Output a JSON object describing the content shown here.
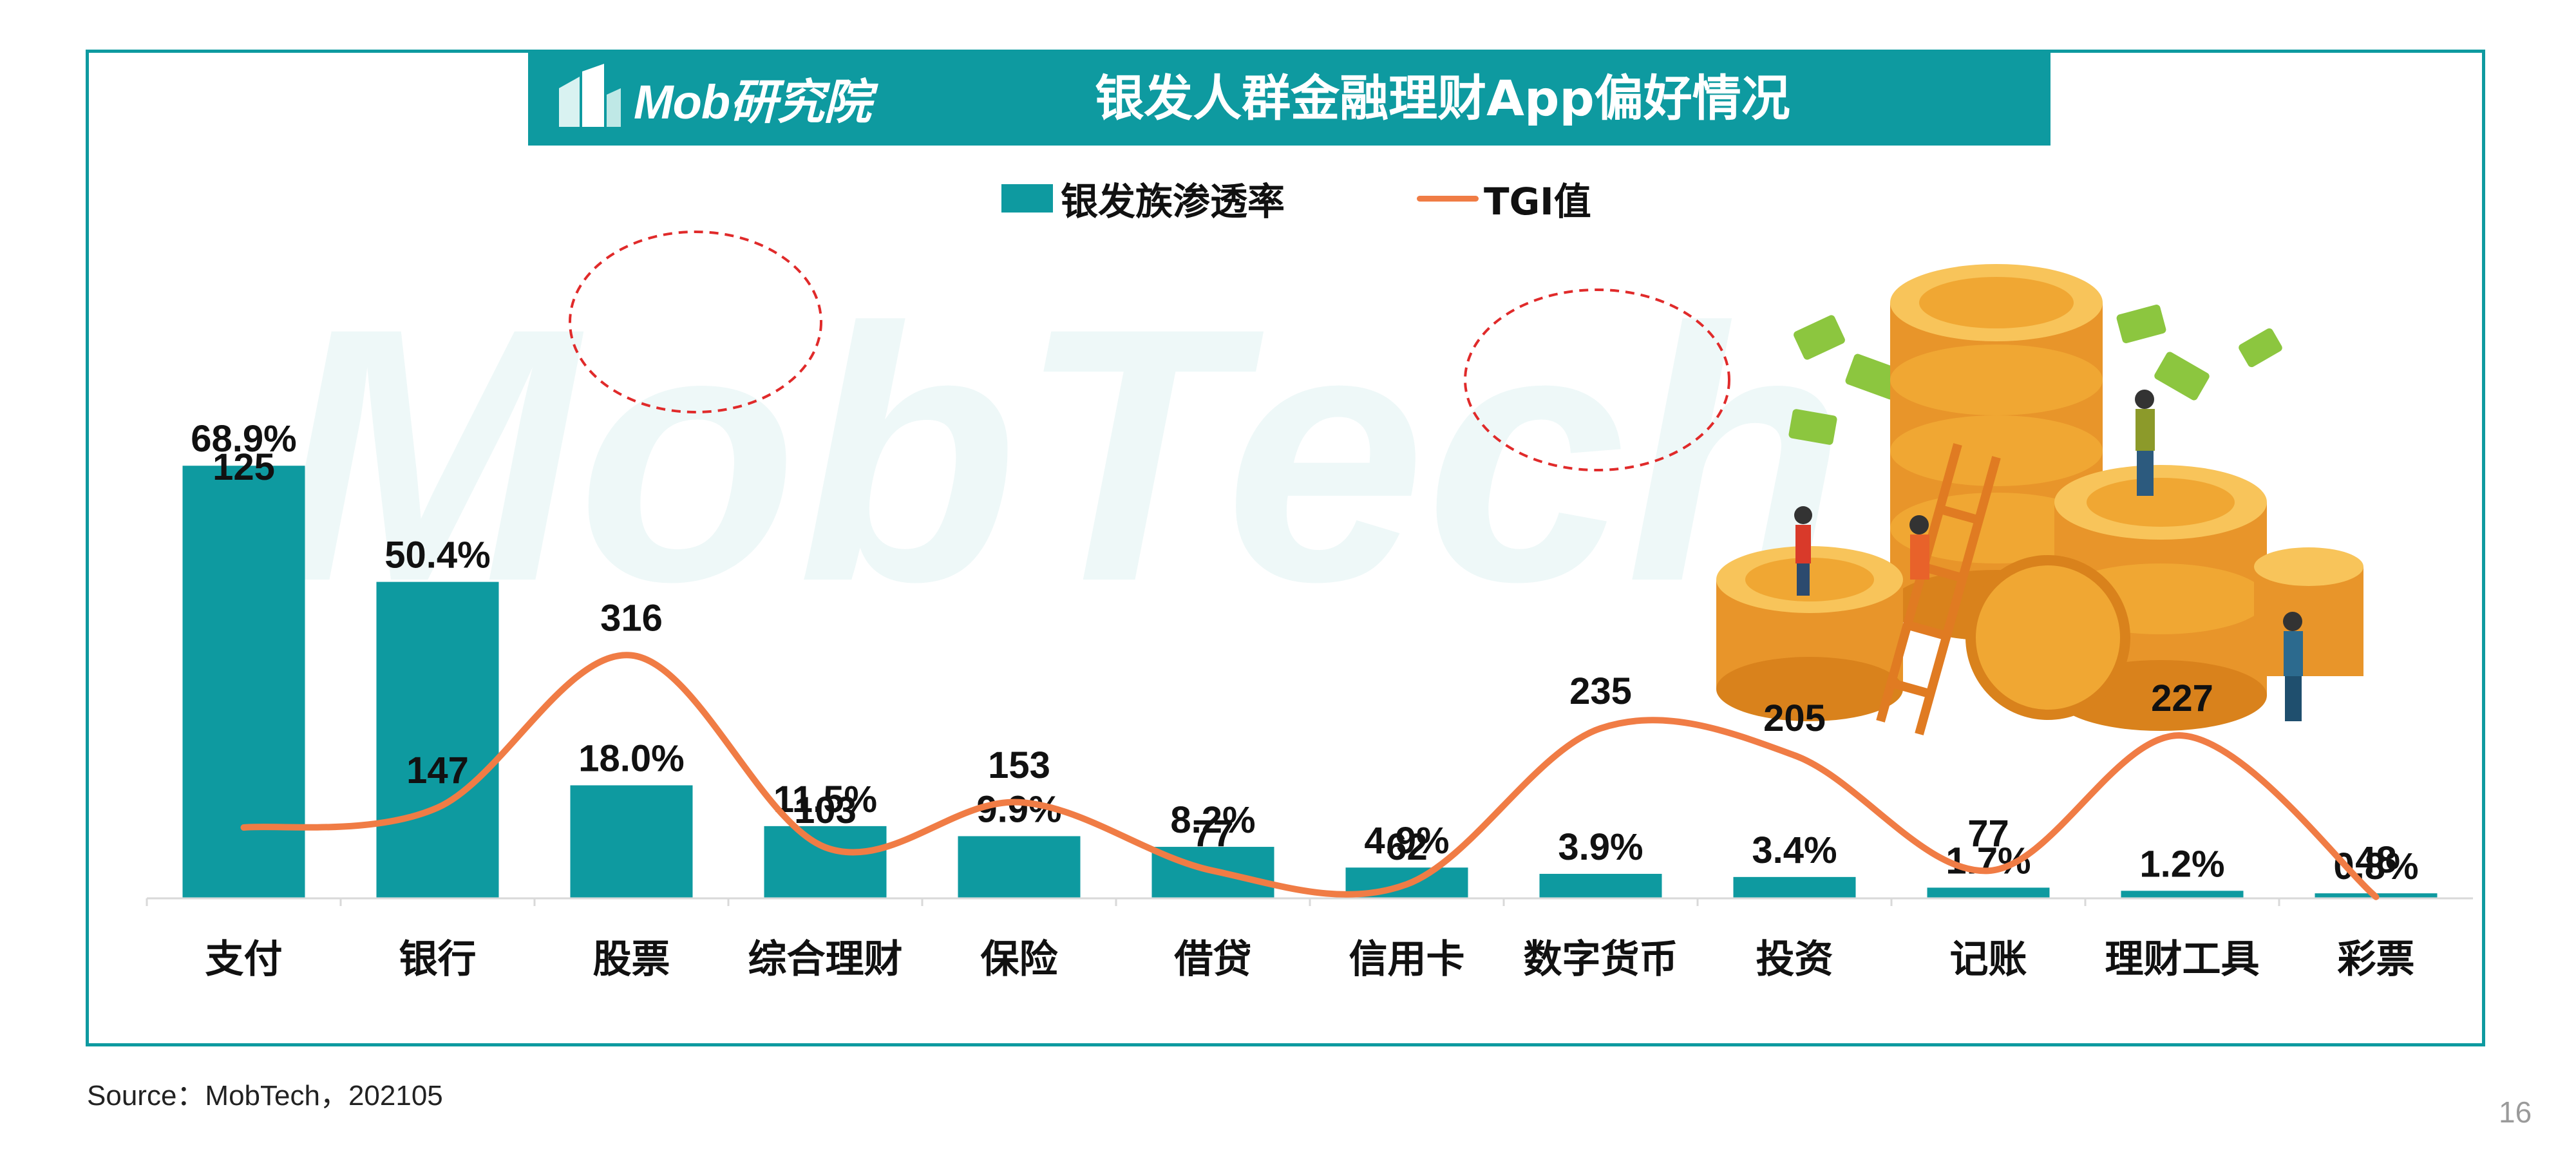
{
  "header": {
    "logo_text": "Mob研究院",
    "title": "银发人群金融理财App偏好情况"
  },
  "legend": {
    "bar_label": "银发族渗透率",
    "line_label": "TGI值"
  },
  "watermark": "MobTech",
  "footer": {
    "source": "Source：MobTech，202105",
    "page_number": "16"
  },
  "colors": {
    "accent": "#0e9aa0",
    "line": "#f07c45",
    "highlight_circle": "#e02a2a"
  },
  "chart_data": {
    "type": "bar",
    "title": "银发人群金融理财App偏好情况",
    "categories": [
      "支付",
      "银行",
      "股票",
      "综合理财",
      "保险",
      "借贷",
      "信用卡",
      "数字货币",
      "投资",
      "记账",
      "理财工具",
      "彩票"
    ],
    "series": [
      {
        "name": "银发族渗透率",
        "type": "bar",
        "values": [
          68.9,
          50.4,
          18.0,
          11.5,
          9.9,
          8.2,
          4.9,
          3.9,
          3.4,
          1.7,
          1.2,
          0.8
        ],
        "labels": [
          "68.9%",
          "50.4%",
          "18.0%",
          "11.5%",
          "9.9%",
          "8.2%",
          "4.9%",
          "3.9%",
          "3.4%",
          "1.7%",
          "1.2%",
          "0.8%"
        ]
      },
      {
        "name": "TGI值",
        "type": "line",
        "values": [
          125,
          147,
          316,
          103,
          153,
          77,
          62,
          235,
          205,
          77,
          227,
          48
        ],
        "labels": [
          "125",
          "147",
          "316",
          "103",
          "153",
          "77",
          "62",
          "235",
          "205",
          "77",
          "227",
          "48"
        ]
      }
    ],
    "highlighted": [
      "股票",
      "数字货币"
    ],
    "legend_position": "top-center",
    "grid": false
  }
}
